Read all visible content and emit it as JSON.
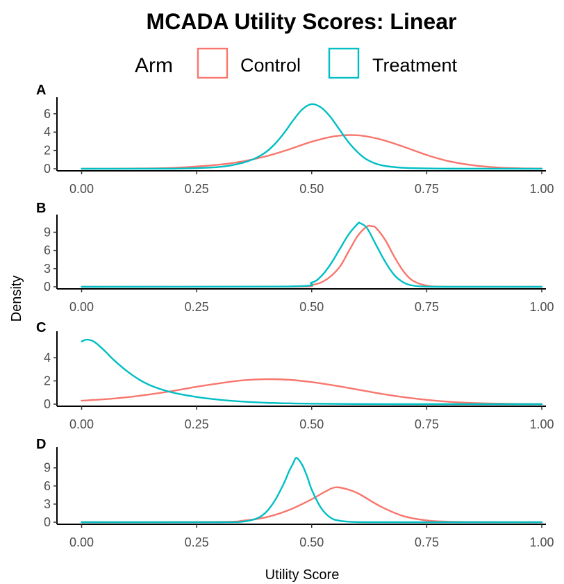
{
  "chart_data": {
    "type": "line",
    "title": "MCADA Utility Scores: Linear",
    "xlabel": "Utility Score",
    "ylabel": "Density",
    "legend": {
      "title": "Arm",
      "position": "top",
      "entries": [
        {
          "name": "Control",
          "color": "#F8766D"
        },
        {
          "name": "Treatment",
          "color": "#00BFC4"
        }
      ]
    },
    "grid": false,
    "xlim": [
      0,
      1
    ],
    "x_ticks": [
      "0.00",
      "0.25",
      "0.50",
      "0.75",
      "1.00"
    ],
    "panels": [
      {
        "tag": "A",
        "ylim": [
          0,
          7.2
        ],
        "y_ticks": [
          "0",
          "2",
          "4",
          "6"
        ],
        "series": [
          {
            "name": "Control",
            "x": [
              0.0,
              0.1,
              0.2,
              0.3,
              0.35,
              0.4,
              0.45,
              0.5,
              0.55,
              0.6,
              0.65,
              0.7,
              0.75,
              0.8,
              0.85,
              0.9,
              0.95,
              1.0
            ],
            "y": [
              0.0,
              0.02,
              0.1,
              0.45,
              0.8,
              1.35,
              2.1,
              2.95,
              3.55,
              3.65,
              3.2,
              2.4,
              1.5,
              0.8,
              0.38,
              0.15,
              0.05,
              0.02
            ]
          },
          {
            "name": "Treatment",
            "x": [
              0.0,
              0.2,
              0.3,
              0.35,
              0.38,
              0.4,
              0.42,
              0.44,
              0.46,
              0.48,
              0.5,
              0.52,
              0.54,
              0.56,
              0.58,
              0.6,
              0.62,
              0.65,
              0.7,
              0.8,
              1.0
            ],
            "y": [
              0.0,
              0.01,
              0.2,
              0.65,
              1.2,
              1.8,
              2.7,
              3.9,
              5.3,
              6.5,
              7.05,
              6.7,
              5.7,
              4.3,
              2.9,
              1.8,
              1.0,
              0.4,
              0.1,
              0.01,
              0.0
            ]
          }
        ]
      },
      {
        "tag": "B",
        "ylim": [
          0,
          11
        ],
        "y_ticks": [
          "0",
          "3",
          "6",
          "9"
        ],
        "series": [
          {
            "name": "Control",
            "x": [
              0.0,
              0.45,
              0.5,
              0.53,
              0.56,
              0.58,
              0.6,
              0.62,
              0.63,
              0.64,
              0.66,
              0.68,
              0.7,
              0.72,
              0.75,
              0.8,
              1.0
            ],
            "y": [
              0.0,
              0.02,
              0.3,
              1.1,
              3.2,
              5.8,
              8.4,
              9.95,
              10.0,
              9.7,
              7.7,
              4.9,
              2.5,
              1.0,
              0.2,
              0.01,
              0.0
            ]
          },
          {
            "name": "Treatment",
            "x": [
              0.0,
              0.45,
              0.5,
              0.52,
              0.54,
              0.56,
              0.58,
              0.6,
              0.605,
              0.62,
              0.64,
              0.66,
              0.68,
              0.7,
              0.72,
              0.75,
              0.8,
              1.0
            ],
            "y": [
              0.0,
              0.05,
              0.7,
              1.7,
              3.6,
              6.1,
              8.6,
              10.4,
              10.5,
              9.7,
              6.9,
              4.1,
              1.9,
              0.7,
              0.2,
              0.02,
              0.0,
              0.0
            ]
          }
        ]
      },
      {
        "tag": "C",
        "ylim": [
          0,
          5.8
        ],
        "y_ticks": [
          "0",
          "2",
          "4"
        ],
        "series": [
          {
            "name": "Control",
            "x": [
              0.0,
              0.05,
              0.1,
              0.15,
              0.2,
              0.25,
              0.3,
              0.35,
              0.4,
              0.45,
              0.5,
              0.55,
              0.6,
              0.65,
              0.7,
              0.75,
              0.8,
              0.85,
              0.9,
              0.95,
              1.0
            ],
            "y": [
              0.3,
              0.42,
              0.6,
              0.85,
              1.15,
              1.5,
              1.8,
              2.05,
              2.15,
              2.1,
              1.9,
              1.6,
              1.25,
              0.9,
              0.6,
              0.37,
              0.2,
              0.1,
              0.05,
              0.02,
              0.01
            ]
          },
          {
            "name": "Treatment",
            "x": [
              0.0,
              0.01,
              0.02,
              0.03,
              0.05,
              0.07,
              0.1,
              0.13,
              0.16,
              0.2,
              0.25,
              0.3,
              0.35,
              0.4,
              0.45,
              0.5,
              0.6,
              0.7,
              0.8,
              1.0
            ],
            "y": [
              5.4,
              5.55,
              5.5,
              5.3,
              4.6,
              3.8,
              2.8,
              2.0,
              1.45,
              0.98,
              0.62,
              0.38,
              0.22,
              0.12,
              0.07,
              0.04,
              0.01,
              0.0,
              0.0,
              0.0
            ]
          }
        ]
      },
      {
        "tag": "D",
        "ylim": [
          0,
          11.5
        ],
        "y_ticks": [
          "0",
          "3",
          "6",
          "9"
        ],
        "series": [
          {
            "name": "Control",
            "x": [
              0.0,
              0.3,
              0.35,
              0.4,
              0.45,
              0.5,
              0.53,
              0.55,
              0.57,
              0.6,
              0.65,
              0.7,
              0.75,
              0.8,
              0.9,
              1.0
            ],
            "y": [
              0.0,
              0.05,
              0.25,
              0.8,
              2.0,
              3.8,
              5.1,
              5.75,
              5.6,
              4.8,
              2.6,
              1.0,
              0.3,
              0.08,
              0.01,
              0.0
            ]
          },
          {
            "name": "Treatment",
            "x": [
              0.0,
              0.3,
              0.35,
              0.38,
              0.4,
              0.42,
              0.44,
              0.45,
              0.46,
              0.465,
              0.47,
              0.48,
              0.49,
              0.5,
              0.52,
              0.54,
              0.56,
              0.6,
              0.7,
              1.0
            ],
            "y": [
              0.0,
              0.0,
              0.1,
              0.6,
              1.6,
              3.6,
              6.5,
              8.3,
              9.8,
              10.6,
              10.5,
              9.4,
              7.6,
              5.4,
              2.4,
              0.8,
              0.25,
              0.02,
              0.0,
              0.0
            ]
          }
        ]
      }
    ]
  }
}
